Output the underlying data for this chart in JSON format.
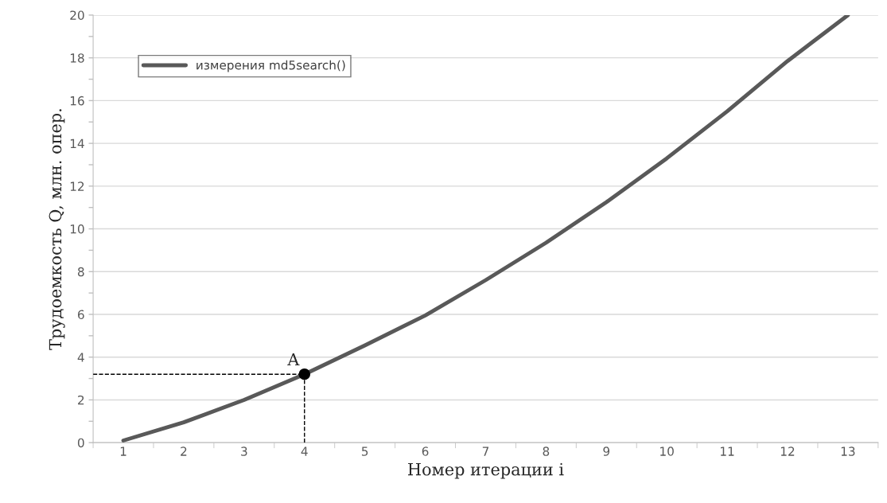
{
  "chart_data": {
    "type": "line",
    "xlabel": "Номер итерации i",
    "ylabel": "Трудоемкость Q, млн. опер.",
    "categories": [
      "1",
      "2",
      "3",
      "4",
      "5",
      "6",
      "7",
      "8",
      "9",
      "10",
      "11",
      "12",
      "13"
    ],
    "series": [
      {
        "name": "измерения md5search()",
        "color": "#595959",
        "values": [
          0.1,
          0.95,
          2.0,
          3.2,
          4.55,
          5.95,
          7.6,
          9.35,
          11.25,
          13.3,
          15.5,
          17.85,
          20
        ]
      },
      {
        "type": "scatter",
        "color": "#000000",
        "x": [
          "4"
        ],
        "values": [
          3.2
        ]
      }
    ],
    "annotations": [
      {
        "text": "A",
        "x": "4",
        "y": 3.2
      }
    ],
    "ylim": [
      0,
      20
    ],
    "yticks": [
      0,
      {
        "value": 1,
        "label": null
      },
      2,
      {
        "value": 3,
        "label": null
      },
      4,
      {
        "value": 5,
        "label": null
      },
      6,
      {
        "value": 7,
        "label": null
      },
      8,
      {
        "value": 9,
        "label": null
      },
      10,
      {
        "value": 11,
        "label": null
      },
      12,
      {
        "value": 13,
        "label": null
      },
      14,
      {
        "value": 15,
        "label": null
      },
      16,
      {
        "value": 17,
        "label": null
      },
      18,
      {
        "value": 19,
        "label": null
      },
      20
    ],
    "grid": "y",
    "legend": "top left",
    "line_style": "solid"
  }
}
